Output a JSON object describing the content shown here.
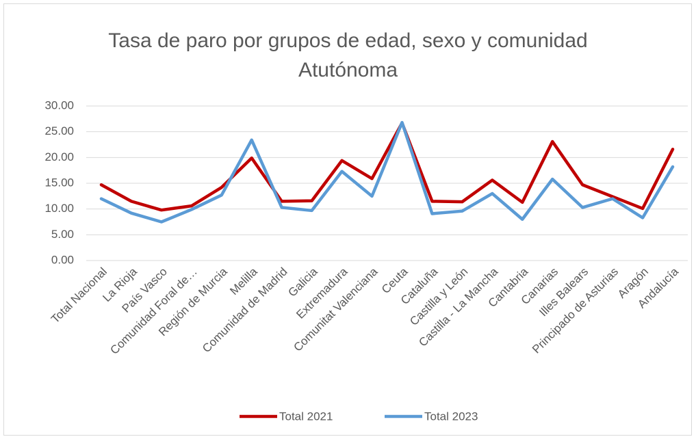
{
  "chart_data": {
    "type": "line",
    "title": "Tasa de paro por grupos de edad, sexo y comunidad Atutónoma",
    "categories": [
      "Total Nacional",
      "La Rioja",
      "País Vasco",
      "Comunidad Foral de…",
      "Región de Murcia",
      "Melilla",
      "Comunidad de Madrid",
      "Galicia",
      "Extremadura",
      "Comunitat Valenciana",
      "Ceuta",
      "Cataluña",
      "Castilla y León",
      "Castilla - La Mancha",
      "Cantabria",
      "Canarias",
      "Illes Balears",
      "Principado de Asturias",
      "Aragón",
      "Andalucía"
    ],
    "series": [
      {
        "name": "Total 2021",
        "color": "#c00000",
        "values": [
          14.7,
          11.5,
          9.8,
          10.6,
          14.2,
          19.9,
          11.5,
          11.6,
          19.4,
          15.9,
          26.7,
          11.5,
          11.4,
          15.6,
          11.3,
          23.1,
          14.7,
          12.4,
          10.1,
          21.6
        ]
      },
      {
        "name": "Total 2023",
        "color": "#5b9bd5",
        "values": [
          12.0,
          9.2,
          7.5,
          9.9,
          12.7,
          23.4,
          10.3,
          9.7,
          17.3,
          12.5,
          26.8,
          9.1,
          9.6,
          13.0,
          8.0,
          15.8,
          10.3,
          12.0,
          8.3,
          18.2
        ]
      }
    ],
    "ylim": [
      0,
      30
    ],
    "yticks": [
      {
        "value": 0,
        "label": "0.00"
      },
      {
        "value": 5,
        "label": "5.00"
      },
      {
        "value": 10,
        "label": "10.00"
      },
      {
        "value": 15,
        "label": "15.00"
      },
      {
        "value": 20,
        "label": "20.00"
      },
      {
        "value": 25,
        "label": "25.00"
      },
      {
        "value": 30,
        "label": "30.00"
      }
    ],
    "grid": true,
    "legend": "bottom"
  }
}
